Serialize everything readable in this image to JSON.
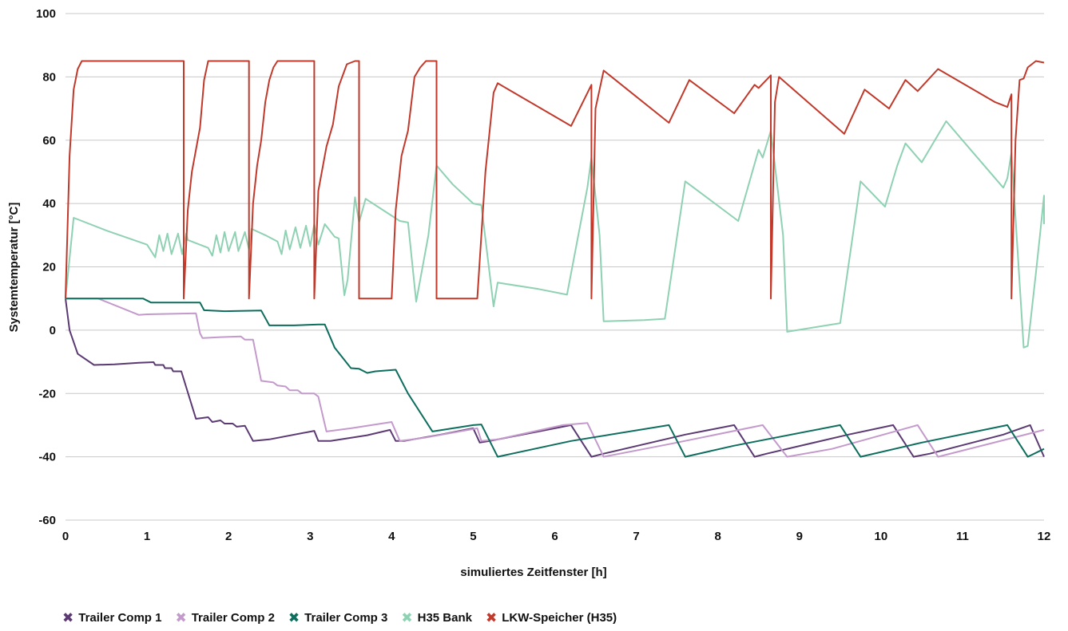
{
  "chart_data": {
    "type": "line",
    "xlabel": "simuliertes Zeitfenster [h]",
    "ylabel": "Systemtemperatur [°C]",
    "xlim": [
      0,
      12
    ],
    "ylim": [
      -60,
      100
    ],
    "x_ticks": [
      "0",
      "1",
      "2",
      "3",
      "4",
      "5",
      "6",
      "7",
      "8",
      "9",
      "10",
      "11",
      "12"
    ],
    "y_ticks": [
      "100",
      "80",
      "60",
      "40",
      "20",
      "0",
      "-20",
      "-40",
      "-60"
    ],
    "grid": "horizontal",
    "legend_position": "bottom-left",
    "series": [
      {
        "name": "Trailer Comp 1",
        "color": "#5b3a73",
        "points": [
          [
            0,
            10
          ],
          [
            0.05,
            0
          ],
          [
            0.15,
            -7.5
          ],
          [
            0.35,
            -11
          ],
          [
            0.6,
            -10.8
          ],
          [
            0.9,
            -10.3
          ],
          [
            1.08,
            -10.1
          ],
          [
            1.1,
            -11
          ],
          [
            1.2,
            -11
          ],
          [
            1.22,
            -12
          ],
          [
            1.3,
            -12
          ],
          [
            1.32,
            -13
          ],
          [
            1.42,
            -13
          ],
          [
            1.6,
            -28
          ],
          [
            1.75,
            -27.5
          ],
          [
            1.8,
            -29
          ],
          [
            1.9,
            -28.5
          ],
          [
            1.95,
            -29.5
          ],
          [
            2.05,
            -29.5
          ],
          [
            2.1,
            -30.5
          ],
          [
            2.2,
            -30.2
          ],
          [
            2.3,
            -35
          ],
          [
            2.5,
            -34.5
          ],
          [
            3.05,
            -31.8
          ],
          [
            3.1,
            -35
          ],
          [
            3.25,
            -35
          ],
          [
            3.7,
            -33.2
          ],
          [
            3.98,
            -31.5
          ],
          [
            4.05,
            -35
          ],
          [
            4.15,
            -35
          ],
          [
            4.6,
            -33
          ],
          [
            5,
            -31
          ],
          [
            5.08,
            -35.5
          ],
          [
            5.2,
            -35
          ],
          [
            5.8,
            -32
          ],
          [
            6.2,
            -30
          ],
          [
            6.45,
            -40
          ],
          [
            6.6,
            -39
          ],
          [
            7.6,
            -33
          ],
          [
            8.2,
            -30
          ],
          [
            8.45,
            -40
          ],
          [
            8.6,
            -39
          ],
          [
            9.6,
            -33
          ],
          [
            10.15,
            -30
          ],
          [
            10.4,
            -40
          ],
          [
            10.6,
            -39
          ],
          [
            11.5,
            -33
          ],
          [
            11.83,
            -30
          ],
          [
            12,
            -40
          ]
        ]
      },
      {
        "name": "Trailer Comp 2",
        "color": "#c49acc",
        "points": [
          [
            0,
            10
          ],
          [
            0.4,
            10
          ],
          [
            0.9,
            4.8
          ],
          [
            1.0,
            5
          ],
          [
            1.6,
            5.3
          ],
          [
            1.65,
            -1
          ],
          [
            1.68,
            -2.5
          ],
          [
            1.9,
            -2.2
          ],
          [
            2.15,
            -2
          ],
          [
            2.2,
            -3
          ],
          [
            2.3,
            -3
          ],
          [
            2.4,
            -16
          ],
          [
            2.55,
            -16.5
          ],
          [
            2.6,
            -17.5
          ],
          [
            2.7,
            -17.8
          ],
          [
            2.75,
            -19
          ],
          [
            2.85,
            -19
          ],
          [
            2.9,
            -20
          ],
          [
            3.05,
            -20
          ],
          [
            3.1,
            -21
          ],
          [
            3.2,
            -32
          ],
          [
            3.5,
            -31
          ],
          [
            4.0,
            -29
          ],
          [
            4.1,
            -35
          ],
          [
            4.4,
            -34
          ],
          [
            5.05,
            -31
          ],
          [
            5.1,
            -35
          ],
          [
            5.3,
            -34.5
          ],
          [
            6.1,
            -30
          ],
          [
            6.4,
            -29.3
          ],
          [
            6.6,
            -40
          ],
          [
            7.4,
            -36
          ],
          [
            8.55,
            -30
          ],
          [
            8.85,
            -40
          ],
          [
            9.4,
            -37.5
          ],
          [
            10.45,
            -30
          ],
          [
            10.7,
            -40
          ],
          [
            12,
            -31.5
          ]
        ]
      },
      {
        "name": "Trailer Comp 3",
        "color": "#0e6e5e",
        "points": [
          [
            0,
            10
          ],
          [
            0.95,
            10
          ],
          [
            1.05,
            8.7
          ],
          [
            1.35,
            8.7
          ],
          [
            1.65,
            8.7
          ],
          [
            1.7,
            6.3
          ],
          [
            1.95,
            6
          ],
          [
            2.4,
            6.2
          ],
          [
            2.5,
            1.5
          ],
          [
            2.8,
            1.5
          ],
          [
            3.1,
            1.8
          ],
          [
            3.18,
            1.8
          ],
          [
            3.3,
            -5.5
          ],
          [
            3.5,
            -12
          ],
          [
            3.6,
            -12.2
          ],
          [
            3.7,
            -13.5
          ],
          [
            3.8,
            -13
          ],
          [
            4.05,
            -12.5
          ],
          [
            4.2,
            -20
          ],
          [
            4.5,
            -32
          ],
          [
            5.0,
            -30
          ],
          [
            5.1,
            -29.8
          ],
          [
            5.3,
            -40
          ],
          [
            6.2,
            -35
          ],
          [
            7.4,
            -30
          ],
          [
            7.6,
            -40
          ],
          [
            8.2,
            -36.5
          ],
          [
            9.5,
            -30
          ],
          [
            9.75,
            -40
          ],
          [
            10.5,
            -35.5
          ],
          [
            11.55,
            -30
          ],
          [
            11.8,
            -40
          ],
          [
            12,
            -37.5
          ]
        ]
      },
      {
        "name": "H35 Bank",
        "color": "#8fd1b3",
        "points": [
          [
            0,
            10
          ],
          [
            0.1,
            35.5
          ],
          [
            0.5,
            31.5
          ],
          [
            1.0,
            27
          ],
          [
            1.1,
            23
          ],
          [
            1.15,
            30
          ],
          [
            1.2,
            25
          ],
          [
            1.25,
            30.5
          ],
          [
            1.3,
            24
          ],
          [
            1.38,
            30.5
          ],
          [
            1.43,
            24
          ],
          [
            1.48,
            30.5
          ],
          [
            1.5,
            28.5
          ],
          [
            1.75,
            26
          ],
          [
            1.8,
            23.5
          ],
          [
            1.85,
            30
          ],
          [
            1.9,
            24.5
          ],
          [
            1.95,
            31
          ],
          [
            2.0,
            25
          ],
          [
            2.08,
            31
          ],
          [
            2.12,
            25
          ],
          [
            2.2,
            31
          ],
          [
            2.25,
            25.5
          ],
          [
            2.28,
            32
          ],
          [
            2.45,
            30
          ],
          [
            2.6,
            28
          ],
          [
            2.65,
            24
          ],
          [
            2.7,
            31.5
          ],
          [
            2.75,
            25.5
          ],
          [
            2.82,
            32.5
          ],
          [
            2.88,
            26
          ],
          [
            2.95,
            33
          ],
          [
            3.0,
            26.5
          ],
          [
            3.05,
            33.5
          ],
          [
            3.1,
            27
          ],
          [
            3.18,
            33.5
          ],
          [
            3.3,
            29.5
          ],
          [
            3.35,
            29
          ],
          [
            3.42,
            11
          ],
          [
            3.46,
            16
          ],
          [
            3.55,
            42
          ],
          [
            3.6,
            34
          ],
          [
            3.68,
            41.5
          ],
          [
            4.1,
            34.5
          ],
          [
            4.2,
            34
          ],
          [
            4.3,
            9
          ],
          [
            4.45,
            30
          ],
          [
            4.55,
            52
          ],
          [
            4.75,
            46
          ],
          [
            5.0,
            40
          ],
          [
            5.1,
            39.5
          ],
          [
            5.25,
            7.5
          ],
          [
            5.3,
            15
          ],
          [
            5.8,
            13
          ],
          [
            6.15,
            11.2
          ],
          [
            6.4,
            45
          ],
          [
            6.45,
            54.5
          ],
          [
            6.55,
            30
          ],
          [
            6.6,
            2.8
          ],
          [
            7.1,
            3.2
          ],
          [
            7.35,
            3.6
          ],
          [
            7.6,
            47
          ],
          [
            8.25,
            34.5
          ],
          [
            8.5,
            57
          ],
          [
            8.55,
            54.5
          ],
          [
            8.65,
            63
          ],
          [
            8.8,
            30
          ],
          [
            8.85,
            -0.5
          ],
          [
            9.5,
            2.2
          ],
          [
            9.75,
            47
          ],
          [
            10.05,
            39
          ],
          [
            10.2,
            52
          ],
          [
            10.3,
            59
          ],
          [
            10.5,
            53
          ],
          [
            10.8,
            66
          ],
          [
            11.0,
            60
          ],
          [
            11.5,
            45
          ],
          [
            11.55,
            48
          ],
          [
            11.6,
            56
          ],
          [
            11.75,
            -5.5
          ],
          [
            11.8,
            -5
          ],
          [
            11.9,
            18
          ],
          [
            11.95,
            30
          ],
          [
            12.0,
            42.5
          ],
          [
            12.1,
            33.5
          ]
        ]
      },
      {
        "name": "LKW-Speicher (H35)",
        "color": "#c0392b",
        "points": [
          [
            0,
            10
          ],
          [
            0.05,
            55
          ],
          [
            0.1,
            76
          ],
          [
            0.15,
            82.5
          ],
          [
            0.2,
            85
          ],
          [
            1.45,
            85
          ],
          [
            1.45,
            10
          ],
          [
            1.5,
            38
          ],
          [
            1.55,
            50
          ],
          [
            1.6,
            57
          ],
          [
            1.65,
            64
          ],
          [
            1.7,
            79
          ],
          [
            1.75,
            85
          ],
          [
            2.25,
            85
          ],
          [
            2.25,
            10
          ],
          [
            2.3,
            40
          ],
          [
            2.35,
            52
          ],
          [
            2.4,
            60
          ],
          [
            2.45,
            72
          ],
          [
            2.5,
            79
          ],
          [
            2.55,
            83
          ],
          [
            2.6,
            85
          ],
          [
            3.05,
            85
          ],
          [
            3.05,
            10
          ],
          [
            3.1,
            44
          ],
          [
            3.2,
            58
          ],
          [
            3.28,
            65
          ],
          [
            3.35,
            77
          ],
          [
            3.45,
            84
          ],
          [
            3.55,
            85
          ],
          [
            3.6,
            85
          ],
          [
            3.6,
            10
          ],
          [
            4.0,
            10
          ],
          [
            4.05,
            38
          ],
          [
            4.12,
            55
          ],
          [
            4.2,
            63
          ],
          [
            4.28,
            80
          ],
          [
            4.35,
            83
          ],
          [
            4.42,
            85
          ],
          [
            4.55,
            85
          ],
          [
            4.55,
            10
          ],
          [
            5.05,
            10
          ],
          [
            5.1,
            30
          ],
          [
            5.15,
            50
          ],
          [
            5.25,
            75
          ],
          [
            5.3,
            78
          ],
          [
            6.2,
            64.5
          ],
          [
            6.45,
            77.5
          ],
          [
            6.45,
            10
          ],
          [
            6.5,
            70
          ],
          [
            6.6,
            82
          ],
          [
            7.4,
            65.5
          ],
          [
            7.65,
            79
          ],
          [
            8.2,
            68.5
          ],
          [
            8.45,
            77.5
          ],
          [
            8.5,
            76.5
          ],
          [
            8.65,
            80.5
          ],
          [
            8.65,
            10
          ],
          [
            8.7,
            72
          ],
          [
            8.75,
            80
          ],
          [
            9.55,
            62
          ],
          [
            9.8,
            76
          ],
          [
            10.1,
            70
          ],
          [
            10.3,
            79
          ],
          [
            10.45,
            75.5
          ],
          [
            10.7,
            82.5
          ],
          [
            11.4,
            72
          ],
          [
            11.55,
            70.5
          ],
          [
            11.6,
            74.5
          ],
          [
            11.6,
            10
          ],
          [
            11.65,
            60
          ],
          [
            11.7,
            79
          ],
          [
            11.75,
            79.5
          ],
          [
            11.8,
            83
          ],
          [
            11.9,
            85
          ],
          [
            12.05,
            84.5
          ]
        ]
      }
    ]
  }
}
